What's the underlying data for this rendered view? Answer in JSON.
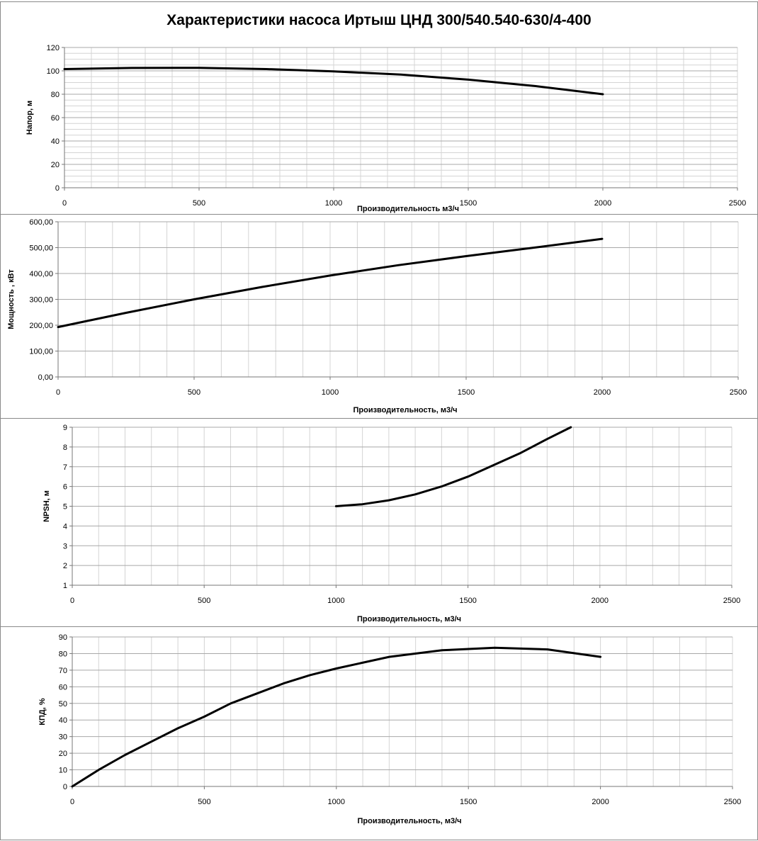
{
  "page": {
    "title": "Характеристики насоса Иртыш ЦНД 300/540.540-630/4-400"
  },
  "chart_data": [
    {
      "id": "head",
      "type": "line",
      "xlabel": "Производительность м3/ч",
      "ylabel": "Напор, м",
      "xlim": [
        0,
        2500
      ],
      "ylim": [
        0,
        120
      ],
      "xticks": [
        "0",
        "500",
        "1000",
        "1500",
        "2000",
        "2500"
      ],
      "yticks": [
        "0",
        "20",
        "40",
        "60",
        "80",
        "100",
        "120"
      ],
      "grid": true,
      "series": [
        {
          "name": "Напор",
          "x": [
            0,
            250,
            500,
            750,
            1000,
            1250,
            1500,
            1750,
            2000
          ],
          "y": [
            101.5,
            102.5,
            102.6,
            101.5,
            99.5,
            96.8,
            92.5,
            87,
            80
          ]
        }
      ]
    },
    {
      "id": "power",
      "type": "line",
      "xlabel": "Производительность, м3/ч",
      "ylabel": "Мощность , кВт",
      "xlim": [
        0,
        2500
      ],
      "ylim": [
        0,
        600
      ],
      "xticks": [
        "0",
        "500",
        "1000",
        "1500",
        "2000",
        "2500"
      ],
      "yticks": [
        "0,00",
        "100,00",
        "200,00",
        "300,00",
        "400,00",
        "500,00",
        "600,00"
      ],
      "grid": true,
      "series": [
        {
          "name": "Мощность",
          "x": [
            0,
            250,
            500,
            750,
            1000,
            1250,
            1500,
            1750,
            2000
          ],
          "y": [
            193,
            248,
            300,
            348,
            392,
            432,
            467,
            500,
            534
          ]
        }
      ]
    },
    {
      "id": "npsh",
      "type": "line",
      "xlabel": "Производительность, м3/ч",
      "ylabel": "NPSH, м",
      "xlim": [
        0,
        2500
      ],
      "ylim": [
        1,
        9
      ],
      "xticks": [
        "0",
        "500",
        "1000",
        "1500",
        "2000",
        "2500"
      ],
      "yticks": [
        "1",
        "2",
        "3",
        "4",
        "5",
        "6",
        "7",
        "8",
        "9"
      ],
      "grid": true,
      "series": [
        {
          "name": "NPSH",
          "x": [
            1000,
            1100,
            1200,
            1300,
            1400,
            1500,
            1600,
            1700,
            1800,
            1890
          ],
          "y": [
            5,
            5.1,
            5.3,
            5.6,
            6.0,
            6.5,
            7.1,
            7.7,
            8.4,
            9
          ]
        }
      ]
    },
    {
      "id": "efficiency",
      "type": "line",
      "xlabel": "Производительность, м3/ч",
      "ylabel": "КПД, %",
      "xlim": [
        0,
        2500
      ],
      "ylim": [
        0,
        90
      ],
      "xticks": [
        "0",
        "500",
        "1000",
        "1500",
        "2000",
        "2500"
      ],
      "yticks": [
        "0",
        "10",
        "20",
        "30",
        "40",
        "50",
        "60",
        "70",
        "80",
        "90"
      ],
      "grid": true,
      "series": [
        {
          "name": "КПД",
          "x": [
            0,
            100,
            200,
            300,
            400,
            500,
            600,
            700,
            800,
            900,
            1000,
            1200,
            1400,
            1600,
            1800,
            2000
          ],
          "y": [
            0,
            10,
            19,
            27,
            35,
            42,
            50,
            56,
            62,
            67,
            71,
            78,
            82,
            83.5,
            82.5,
            78
          ]
        }
      ]
    }
  ]
}
